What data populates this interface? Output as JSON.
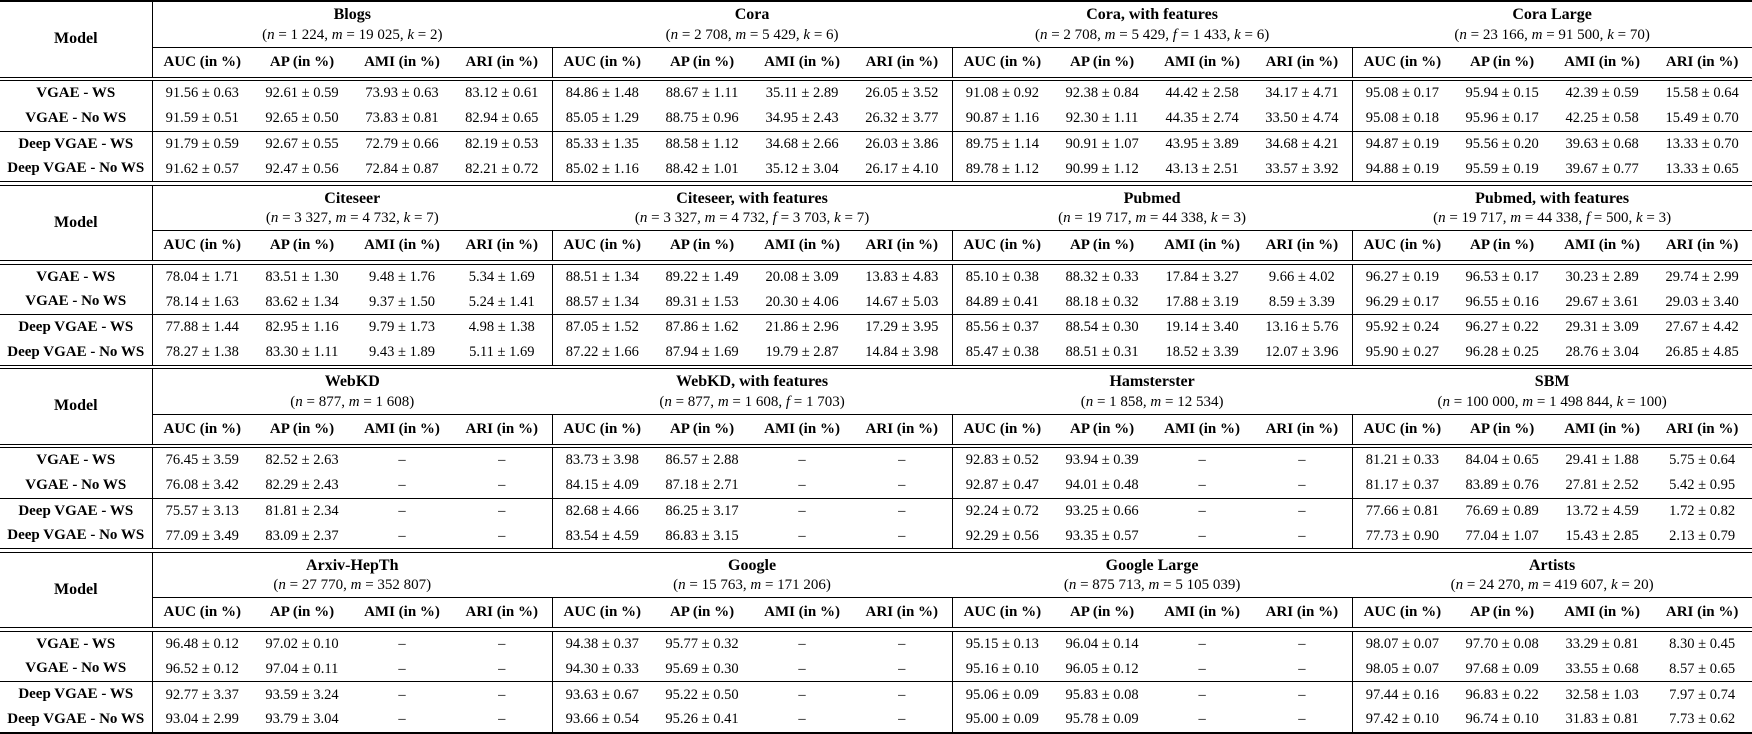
{
  "page": {
    "background": "#ffffff",
    "text_color": "#000000"
  },
  "table": {
    "model_header": "Model",
    "metric_headers": [
      "AUC (in %)",
      "AP (in %)",
      "AMI (in %)",
      "ARI (in %)"
    ],
    "row_labels": [
      "VGAE - WS",
      "VGAE - No WS",
      "Deep VGAE - WS",
      "Deep VGAE - No WS"
    ],
    "missing_value": "–",
    "blocks": [
      {
        "datasets": [
          {
            "name": "Blogs",
            "params": [
              [
                "n",
                "1 224"
              ],
              [
                "m",
                "19 025"
              ],
              [
                "k",
                "2"
              ]
            ],
            "rows": [
              [
                "91.56 ± 0.63",
                "92.61 ± 0.59",
                "73.93 ± 0.63",
                "83.12 ± 0.61"
              ],
              [
                "91.59 ± 0.51",
                "92.65 ± 0.50",
                "73.83 ± 0.81",
                "82.94 ± 0.65"
              ],
              [
                "91.79 ± 0.59",
                "92.67 ± 0.55",
                "72.79 ± 0.66",
                "82.19 ± 0.53"
              ],
              [
                "91.62 ± 0.57",
                "92.47 ± 0.56",
                "72.84 ± 0.87",
                "82.21 ± 0.72"
              ]
            ]
          },
          {
            "name": "Cora",
            "params": [
              [
                "n",
                "2 708"
              ],
              [
                "m",
                "5 429"
              ],
              [
                "k",
                "6"
              ]
            ],
            "rows": [
              [
                "84.86 ± 1.48",
                "88.67 ± 1.11",
                "35.11 ± 2.89",
                "26.05 ± 3.52"
              ],
              [
                "85.05 ± 1.29",
                "88.75 ± 0.96",
                "34.95 ± 2.43",
                "26.32 ± 3.77"
              ],
              [
                "85.33 ± 1.35",
                "88.58 ± 1.12",
                "34.68 ± 2.66",
                "26.03 ± 3.86"
              ],
              [
                "85.02 ± 1.16",
                "88.42 ± 1.01",
                "35.12 ± 3.04",
                "26.17 ± 4.10"
              ]
            ]
          },
          {
            "name": "Cora, with features",
            "params": [
              [
                "n",
                "2 708"
              ],
              [
                "m",
                "5 429"
              ],
              [
                "f",
                "1 433"
              ],
              [
                "k",
                "6"
              ]
            ],
            "rows": [
              [
                "91.08 ± 0.92",
                "92.38 ± 0.84",
                "44.42 ± 2.58",
                "34.17 ± 4.71"
              ],
              [
                "90.87 ± 1.16",
                "92.30 ± 1.11",
                "44.35 ± 2.74",
                "33.50 ± 4.74"
              ],
              [
                "89.75 ± 1.14",
                "90.91 ± 1.07",
                "43.95 ± 3.89",
                "34.68 ± 4.21"
              ],
              [
                "89.78 ± 1.12",
                "90.99 ± 1.12",
                "43.13 ± 2.51",
                "33.57 ± 3.92"
              ]
            ]
          },
          {
            "name": "Cora Large",
            "params": [
              [
                "n",
                "23 166"
              ],
              [
                "m",
                "91 500"
              ],
              [
                "k",
                "70"
              ]
            ],
            "rows": [
              [
                "95.08 ± 0.17",
                "95.94 ± 0.15",
                "42.39 ± 0.59",
                "15.58 ± 0.64"
              ],
              [
                "95.08 ± 0.18",
                "95.96 ± 0.17",
                "42.25 ± 0.58",
                "15.49 ± 0.70"
              ],
              [
                "94.87 ± 0.19",
                "95.56 ± 0.20",
                "39.63 ± 0.68",
                "13.33 ± 0.70"
              ],
              [
                "94.88 ± 0.19",
                "95.59 ± 0.19",
                "39.67 ± 0.77",
                "13.33 ± 0.65"
              ]
            ]
          }
        ]
      },
      {
        "datasets": [
          {
            "name": "Citeseer",
            "params": [
              [
                "n",
                "3 327"
              ],
              [
                "m",
                "4 732"
              ],
              [
                "k",
                "7"
              ]
            ],
            "rows": [
              [
                "78.04 ± 1.71",
                "83.51 ± 1.30",
                "9.48 ± 1.76",
                "5.34 ± 1.69"
              ],
              [
                "78.14 ± 1.63",
                "83.62 ± 1.34",
                "9.37 ± 1.50",
                "5.24 ± 1.41"
              ],
              [
                "77.88 ± 1.44",
                "82.95 ± 1.16",
                "9.79 ± 1.73",
                "4.98 ± 1.38"
              ],
              [
                "78.27 ± 1.38",
                "83.30 ± 1.11",
                "9.43 ± 1.89",
                "5.11 ± 1.69"
              ]
            ]
          },
          {
            "name": "Citeseer, with features",
            "params": [
              [
                "n",
                "3 327"
              ],
              [
                "m",
                "4 732"
              ],
              [
                "f",
                "3 703"
              ],
              [
                "k",
                "7"
              ]
            ],
            "rows": [
              [
                "88.51 ± 1.34",
                "89.22 ± 1.49",
                "20.08 ± 3.09",
                "13.83 ± 4.83"
              ],
              [
                "88.57 ± 1.34",
                "89.31 ± 1.53",
                "20.30 ± 4.06",
                "14.67 ± 5.03"
              ],
              [
                "87.05 ± 1.52",
                "87.86 ± 1.62",
                "21.86 ± 2.96",
                "17.29 ± 3.95"
              ],
              [
                "87.22 ± 1.66",
                "87.94 ± 1.69",
                "19.79 ± 2.87",
                "14.84 ± 3.98"
              ]
            ]
          },
          {
            "name": "Pubmed",
            "params": [
              [
                "n",
                "19 717"
              ],
              [
                "m",
                "44 338"
              ],
              [
                "k",
                "3"
              ]
            ],
            "rows": [
              [
                "85.10 ± 0.38",
                "88.32 ± 0.33",
                "17.84 ± 3.27",
                "9.66 ± 4.02"
              ],
              [
                "84.89 ± 0.41",
                "88.18 ± 0.32",
                "17.88 ± 3.19",
                "8.59 ± 3.39"
              ],
              [
                "85.56 ± 0.37",
                "88.54 ± 0.30",
                "19.14 ± 3.40",
                "13.16 ± 5.76"
              ],
              [
                "85.47 ± 0.38",
                "88.51 ± 0.31",
                "18.52 ± 3.39",
                "12.07 ± 3.96"
              ]
            ]
          },
          {
            "name": "Pubmed, with features",
            "params": [
              [
                "n",
                "19 717"
              ],
              [
                "m",
                "44 338"
              ],
              [
                "f",
                "500"
              ],
              [
                "k",
                "3"
              ]
            ],
            "rows": [
              [
                "96.27 ± 0.19",
                "96.53 ± 0.17",
                "30.23 ± 2.89",
                "29.74 ± 2.99"
              ],
              [
                "96.29 ± 0.17",
                "96.55 ± 0.16",
                "29.67 ± 3.61",
                "29.03 ± 3.40"
              ],
              [
                "95.92 ± 0.24",
                "96.27 ± 0.22",
                "29.31 ± 3.09",
                "27.67 ± 4.42"
              ],
              [
                "95.90 ± 0.27",
                "96.28 ± 0.25",
                "28.76 ± 3.04",
                "26.85 ± 4.85"
              ]
            ]
          }
        ]
      },
      {
        "datasets": [
          {
            "name": "WebKD",
            "params": [
              [
                "n",
                "877"
              ],
              [
                "m",
                "1 608"
              ]
            ],
            "rows": [
              [
                "76.45 ± 3.59",
                "82.52 ± 2.63",
                "–",
                "–"
              ],
              [
                "76.08 ± 3.42",
                "82.29 ± 2.43",
                "–",
                "–"
              ],
              [
                "75.57 ± 3.13",
                "81.81 ± 2.34",
                "–",
                "–"
              ],
              [
                "77.09 ± 3.49",
                "83.09 ± 2.37",
                "–",
                "–"
              ]
            ]
          },
          {
            "name": "WebKD, with features",
            "params": [
              [
                "n",
                "877"
              ],
              [
                "m",
                "1 608"
              ],
              [
                "f",
                "1 703"
              ]
            ],
            "rows": [
              [
                "83.73 ± 3.98",
                "86.57 ± 2.88",
                "–",
                "–"
              ],
              [
                "84.15 ± 4.09",
                "87.18 ± 2.71",
                "–",
                "–"
              ],
              [
                "82.68 ± 4.66",
                "86.25 ± 3.17",
                "–",
                "–"
              ],
              [
                "83.54 ± 4.59",
                "86.83 ± 3.15",
                "–",
                "–"
              ]
            ]
          },
          {
            "name": "Hamsterster",
            "params": [
              [
                "n",
                "1 858"
              ],
              [
                "m",
                "12 534"
              ]
            ],
            "rows": [
              [
                "92.83 ± 0.52",
                "93.94 ± 0.39",
                "–",
                "–"
              ],
              [
                "92.87 ± 0.47",
                "94.01 ± 0.48",
                "–",
                "–"
              ],
              [
                "92.24 ± 0.72",
                "93.25 ± 0.66",
                "–",
                "–"
              ],
              [
                "92.29 ± 0.56",
                "93.35 ± 0.57",
                "–",
                "–"
              ]
            ]
          },
          {
            "name": "SBM",
            "params": [
              [
                "n",
                "100 000"
              ],
              [
                "m",
                "1 498 844"
              ],
              [
                "k",
                "100"
              ]
            ],
            "rows": [
              [
                "81.21 ± 0.33",
                "84.04 ± 0.65",
                "29.41 ± 1.88",
                "5.75 ± 0.64"
              ],
              [
                "81.17 ± 0.37",
                "83.89 ± 0.76",
                "27.81 ± 2.52",
                "5.42 ± 0.95"
              ],
              [
                "77.66 ± 0.81",
                "76.69 ± 0.89",
                "13.72 ± 4.59",
                "1.72 ± 0.82"
              ],
              [
                "77.73 ± 0.90",
                "77.04 ± 1.07",
                "15.43 ± 2.85",
                "2.13 ± 0.79"
              ]
            ]
          }
        ]
      },
      {
        "datasets": [
          {
            "name": "Arxiv-HepTh",
            "params": [
              [
                "n",
                "27 770"
              ],
              [
                "m",
                "352 807"
              ]
            ],
            "rows": [
              [
                "96.48 ± 0.12",
                "97.02 ± 0.10",
                "–",
                "–"
              ],
              [
                "96.52 ± 0.12",
                "97.04 ± 0.11",
                "–",
                "–"
              ],
              [
                "92.77 ± 3.37",
                "93.59 ± 3.24",
                "–",
                "–"
              ],
              [
                "93.04 ± 2.99",
                "93.79 ± 3.04",
                "–",
                "–"
              ]
            ]
          },
          {
            "name": "Google",
            "params": [
              [
                "n",
                "15 763"
              ],
              [
                "m",
                "171 206"
              ]
            ],
            "rows": [
              [
                "94.38 ± 0.37",
                "95.77 ± 0.32",
                "–",
                "–"
              ],
              [
                "94.30 ± 0.33",
                "95.69 ± 0.30",
                "–",
                "–"
              ],
              [
                "93.63 ± 0.67",
                "95.22 ± 0.50",
                "–",
                "–"
              ],
              [
                "93.66 ± 0.54",
                "95.26 ± 0.41",
                "–",
                "–"
              ]
            ]
          },
          {
            "name": "Google Large",
            "params": [
              [
                "n",
                "875 713"
              ],
              [
                "m",
                "5 105 039"
              ]
            ],
            "rows": [
              [
                "95.15 ± 0.13",
                "96.04 ± 0.14",
                "–",
                "–"
              ],
              [
                "95.16 ± 0.10",
                "96.05 ± 0.12",
                "–",
                "–"
              ],
              [
                "95.06 ± 0.09",
                "95.83 ± 0.08",
                "–",
                "–"
              ],
              [
                "95.00 ± 0.09",
                "95.78 ± 0.09",
                "–",
                "–"
              ]
            ]
          },
          {
            "name": "Artists",
            "params": [
              [
                "n",
                "24 270"
              ],
              [
                "m",
                "419 607"
              ],
              [
                "k",
                "20"
              ]
            ],
            "rows": [
              [
                "98.07 ± 0.07",
                "97.70 ± 0.08",
                "33.29 ± 0.81",
                "8.30 ± 0.45"
              ],
              [
                "98.05 ± 0.07",
                "97.68 ± 0.09",
                "33.55 ± 0.68",
                "8.57 ± 0.65"
              ],
              [
                "97.44 ± 0.16",
                "96.83 ± 0.22",
                "32.58 ± 1.03",
                "7.97 ± 0.74"
              ],
              [
                "97.42 ± 0.10",
                "96.74 ± 0.10",
                "31.83 ± 0.81",
                "7.73 ± 0.62"
              ]
            ]
          }
        ]
      }
    ]
  }
}
